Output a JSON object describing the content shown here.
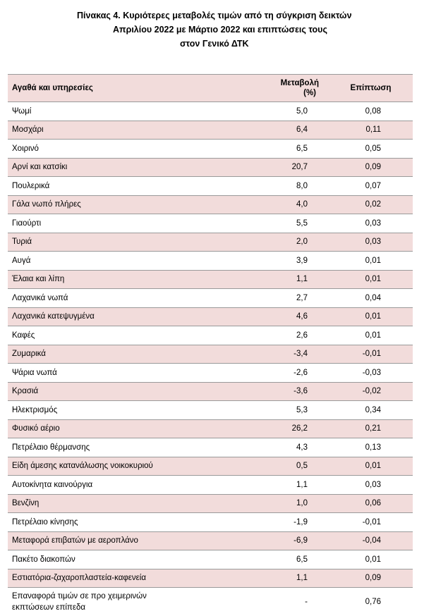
{
  "title": {
    "line1": "Πίνακας  4. Κυριότερες μεταβολές τιμών από τη σύγκριση δεικτών",
    "line2": "Απριλίου 2022 με Μάρτιο 2022 και επιπτώσεις τους",
    "line3": "στον Γενικό ΔΤΚ"
  },
  "table": {
    "headers": {
      "item": "Αγαθά και υπηρεσίες",
      "change_line1": "Μεταβολή",
      "change_line2": "(%)",
      "impact": "Επίπτωση"
    },
    "rows": [
      {
        "item": "Ψωμί",
        "change": "5,0",
        "impact": "0,08"
      },
      {
        "item": "Μοσχάρι",
        "change": "6,4",
        "impact": "0,11"
      },
      {
        "item": "Χοιρινό",
        "change": "6,5",
        "impact": "0,05"
      },
      {
        "item": "Αρνί και κατσίκι",
        "change": "20,7",
        "impact": "0,09"
      },
      {
        "item": "Πουλερικά",
        "change": "8,0",
        "impact": "0,07"
      },
      {
        "item": "Γάλα νωπό πλήρες",
        "change": "4,0",
        "impact": "0,02"
      },
      {
        "item": "Γιαούρτι",
        "change": "5,5",
        "impact": "0,03"
      },
      {
        "item": "Τυριά",
        "change": "2,0",
        "impact": "0,03"
      },
      {
        "item": "Αυγά",
        "change": "3,9",
        "impact": "0,01"
      },
      {
        "item": "Έλαια και λίπη",
        "change": "1,1",
        "impact": "0,01"
      },
      {
        "item": "Λαχανικά νωπά",
        "change": "2,7",
        "impact": "0,04"
      },
      {
        "item": "Λαχανικά κατεψυγμένα",
        "change": "4,6",
        "impact": "0,01"
      },
      {
        "item": "Καφές",
        "change": "2,6",
        "impact": "0,01"
      },
      {
        "item": "Ζυμαρικά",
        "change": "-3,4",
        "impact": "-0,01"
      },
      {
        "item": "Ψάρια νωπά",
        "change": "-2,6",
        "impact": "-0,03"
      },
      {
        "item": "Κρασιά",
        "change": "-3,6",
        "impact": "-0,02"
      },
      {
        "item": "Ηλεκτρισμός",
        "change": "5,3",
        "impact": "0,34"
      },
      {
        "item": "Φυσικό αέριο",
        "change": "26,2",
        "impact": "0,21"
      },
      {
        "item": "Πετρέλαιο θέρμανσης",
        "change": "4,3",
        "impact": "0,13"
      },
      {
        "item": "Είδη άμεσης κατανάλωσης νοικοκυριού",
        "change": "0,5",
        "impact": "0,01"
      },
      {
        "item": "Αυτοκίνητα καινούργια",
        "change": "1,1",
        "impact": "0,03"
      },
      {
        "item": "Βενζίνη",
        "change": "1,0",
        "impact": "0,06"
      },
      {
        "item": "Πετρέλαιο κίνησης",
        "change": "-1,9",
        "impact": "-0,01"
      },
      {
        "item": "Μεταφορά επιβατών με αεροπλάνο",
        "change": "-6,9",
        "impact": "-0,04"
      },
      {
        "item": "Πακέτο διακοπών",
        "change": "6,5",
        "impact": "0,01"
      },
      {
        "item": "Εστιατόρια-ζαχαροπλαστεία-καφενεία",
        "change": "1,1",
        "impact": "0,09"
      }
    ],
    "last_row": {
      "item_line1": "Επαναφορά τιμών σε προ χειμερινών",
      "item_line2": "εκπτώσεων επίπεδα",
      "change": "-",
      "impact": "0,76"
    }
  }
}
